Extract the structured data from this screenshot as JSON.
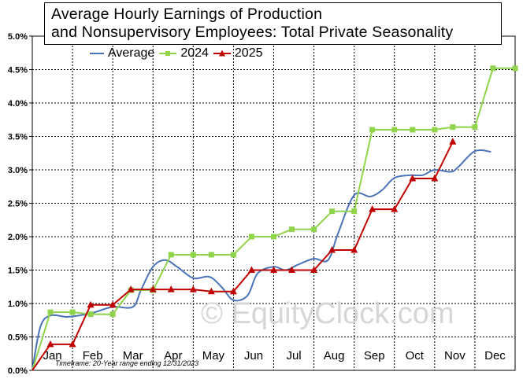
{
  "chart_data": {
    "type": "line",
    "title": "Average Hourly Earnings of Production and Nonsupervisory Employees: Total Private Seasonality",
    "title_lines": [
      "Average Hourly Earnings of Production",
      "and Nonsupervisory Employees: Total Private Seasonality"
    ],
    "categories": [
      "Jan",
      "Feb",
      "Mar",
      "Apr",
      "May",
      "Jun",
      "Jul",
      "Aug",
      "Sep",
      "Oct",
      "Nov",
      "Dec"
    ],
    "y_tick_labels": [
      "0.0%",
      "0.5%",
      "1.0%",
      "1.5%",
      "2.0%",
      "2.5%",
      "3.0%",
      "3.5%",
      "4.0%",
      "4.5%",
      "5.0%"
    ],
    "ylim": [
      0,
      5
    ],
    "grid": true,
    "legend_position": "top-left",
    "series": [
      {
        "name": "Average",
        "color": "#4a73b8",
        "style": "smooth",
        "points": [
          [
            0,
            0
          ],
          [
            0.2,
            0.65
          ],
          [
            0.45,
            0.82
          ],
          [
            0.85,
            0.8
          ],
          [
            1.15,
            0.82
          ],
          [
            1.5,
            0.86
          ],
          [
            2.0,
            0.95
          ],
          [
            2.5,
            0.95
          ],
          [
            2.7,
            1.2
          ],
          [
            3.0,
            1.55
          ],
          [
            3.3,
            1.65
          ],
          [
            3.6,
            1.55
          ],
          [
            4.0,
            1.38
          ],
          [
            4.4,
            1.4
          ],
          [
            4.7,
            1.25
          ],
          [
            5.0,
            1.05
          ],
          [
            5.35,
            1.12
          ],
          [
            5.6,
            1.45
          ],
          [
            6.0,
            1.55
          ],
          [
            6.3,
            1.5
          ],
          [
            6.6,
            1.58
          ],
          [
            7.0,
            1.67
          ],
          [
            7.35,
            1.65
          ],
          [
            7.6,
            2.05
          ],
          [
            8.0,
            2.62
          ],
          [
            8.4,
            2.6
          ],
          [
            8.7,
            2.7
          ],
          [
            9.0,
            2.88
          ],
          [
            9.4,
            2.92
          ],
          [
            9.7,
            2.92
          ],
          [
            10.0,
            3.0
          ],
          [
            10.4,
            2.97
          ],
          [
            10.6,
            3.05
          ],
          [
            11.0,
            3.28
          ],
          [
            11.4,
            3.27
          ]
        ]
      },
      {
        "name": "2024",
        "color": "#8fd44a",
        "marker": "square",
        "points": [
          [
            0,
            0
          ],
          [
            0.45,
            0.87
          ],
          [
            1.0,
            0.87
          ],
          [
            1.45,
            0.84
          ],
          [
            2.0,
            0.84
          ],
          [
            2.45,
            1.2
          ],
          [
            3.0,
            1.2
          ],
          [
            3.45,
            1.73
          ],
          [
            4.0,
            1.73
          ],
          [
            4.45,
            1.73
          ],
          [
            5.0,
            1.73
          ],
          [
            5.45,
            2.0
          ],
          [
            6.0,
            2.0
          ],
          [
            6.45,
            2.11
          ],
          [
            7.0,
            2.11
          ],
          [
            7.45,
            2.38
          ],
          [
            8.0,
            2.38
          ],
          [
            8.45,
            3.6
          ],
          [
            9.0,
            3.6
          ],
          [
            9.45,
            3.6
          ],
          [
            10.0,
            3.6
          ],
          [
            10.45,
            3.64
          ],
          [
            11.0,
            3.64
          ],
          [
            11.45,
            4.52
          ],
          [
            12.0,
            4.52
          ]
        ]
      },
      {
        "name": "2025",
        "color": "#c00000",
        "marker": "triangle",
        "points": [
          [
            0,
            0
          ],
          [
            0.45,
            0.39
          ],
          [
            1.0,
            0.39
          ],
          [
            1.45,
            0.98
          ],
          [
            2.0,
            0.98
          ],
          [
            2.45,
            1.21
          ],
          [
            3.0,
            1.21
          ],
          [
            3.45,
            1.21
          ],
          [
            4.0,
            1.21
          ],
          [
            4.45,
            1.18
          ],
          [
            5.0,
            1.18
          ],
          [
            5.45,
            1.5
          ],
          [
            6.0,
            1.5
          ],
          [
            6.45,
            1.5
          ],
          [
            7.0,
            1.5
          ],
          [
            7.45,
            1.8
          ],
          [
            8.0,
            1.8
          ],
          [
            8.45,
            2.41
          ],
          [
            9.0,
            2.41
          ],
          [
            9.45,
            2.87
          ],
          [
            10.0,
            2.87
          ],
          [
            10.45,
            3.42
          ]
        ]
      }
    ],
    "annotations": {
      "footnote": "Timeframe: 20-Year range ending 12/31/2023",
      "watermark": "© EquityClock.com"
    }
  }
}
